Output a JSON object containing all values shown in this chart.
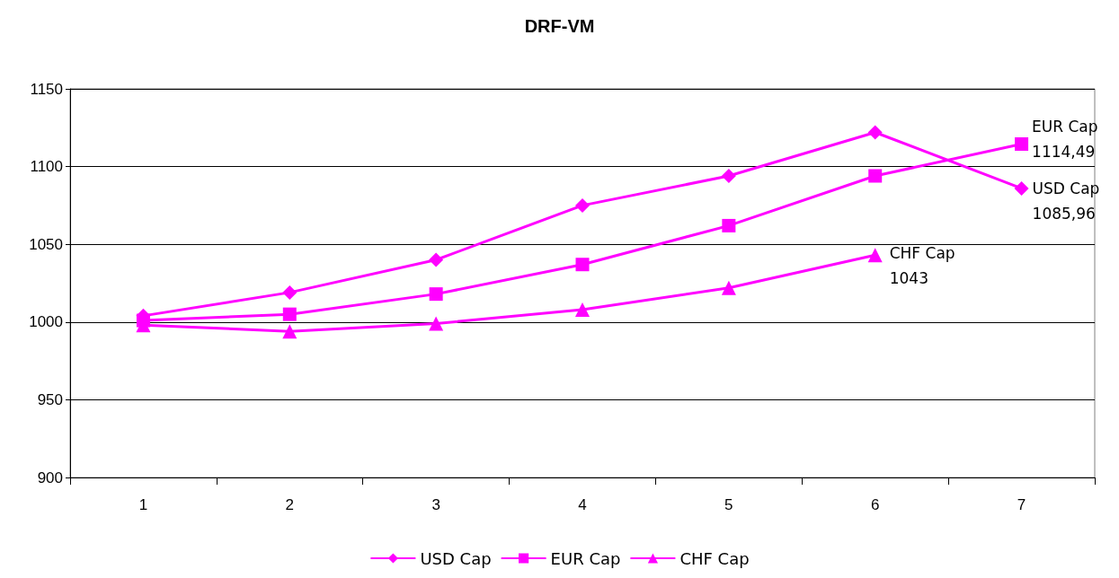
{
  "chart_data": {
    "type": "line",
    "title": "DRF-VM",
    "categories": [
      "1",
      "2",
      "3",
      "4",
      "5",
      "6",
      "7"
    ],
    "ylim": [
      900,
      1150
    ],
    "yticks": [
      900,
      950,
      1000,
      1050,
      1100,
      1150
    ],
    "grid": "y",
    "legend": "bottom",
    "series": [
      {
        "name": "USD Cap",
        "color": "#ff00ff",
        "marker": "diamond",
        "values": [
          1004,
          1019,
          1040,
          1075,
          1094,
          1122,
          1085.96
        ],
        "value_labels": [
          null,
          null,
          null,
          null,
          null,
          null,
          "1085,96"
        ]
      },
      {
        "name": "EUR Cap",
        "color": "#ff00ff",
        "marker": "square",
        "values": [
          1001,
          1005,
          1018,
          1037,
          1062,
          1094,
          1114.49
        ],
        "value_labels": [
          null,
          null,
          null,
          null,
          null,
          null,
          "1114,49"
        ]
      },
      {
        "name": "CHF Cap",
        "color": "#ff00ff",
        "marker": "triangle",
        "values": [
          998,
          994,
          999,
          1008,
          1022,
          1043,
          null
        ],
        "value_labels": [
          null,
          null,
          null,
          null,
          null,
          "1043",
          null
        ]
      }
    ]
  }
}
